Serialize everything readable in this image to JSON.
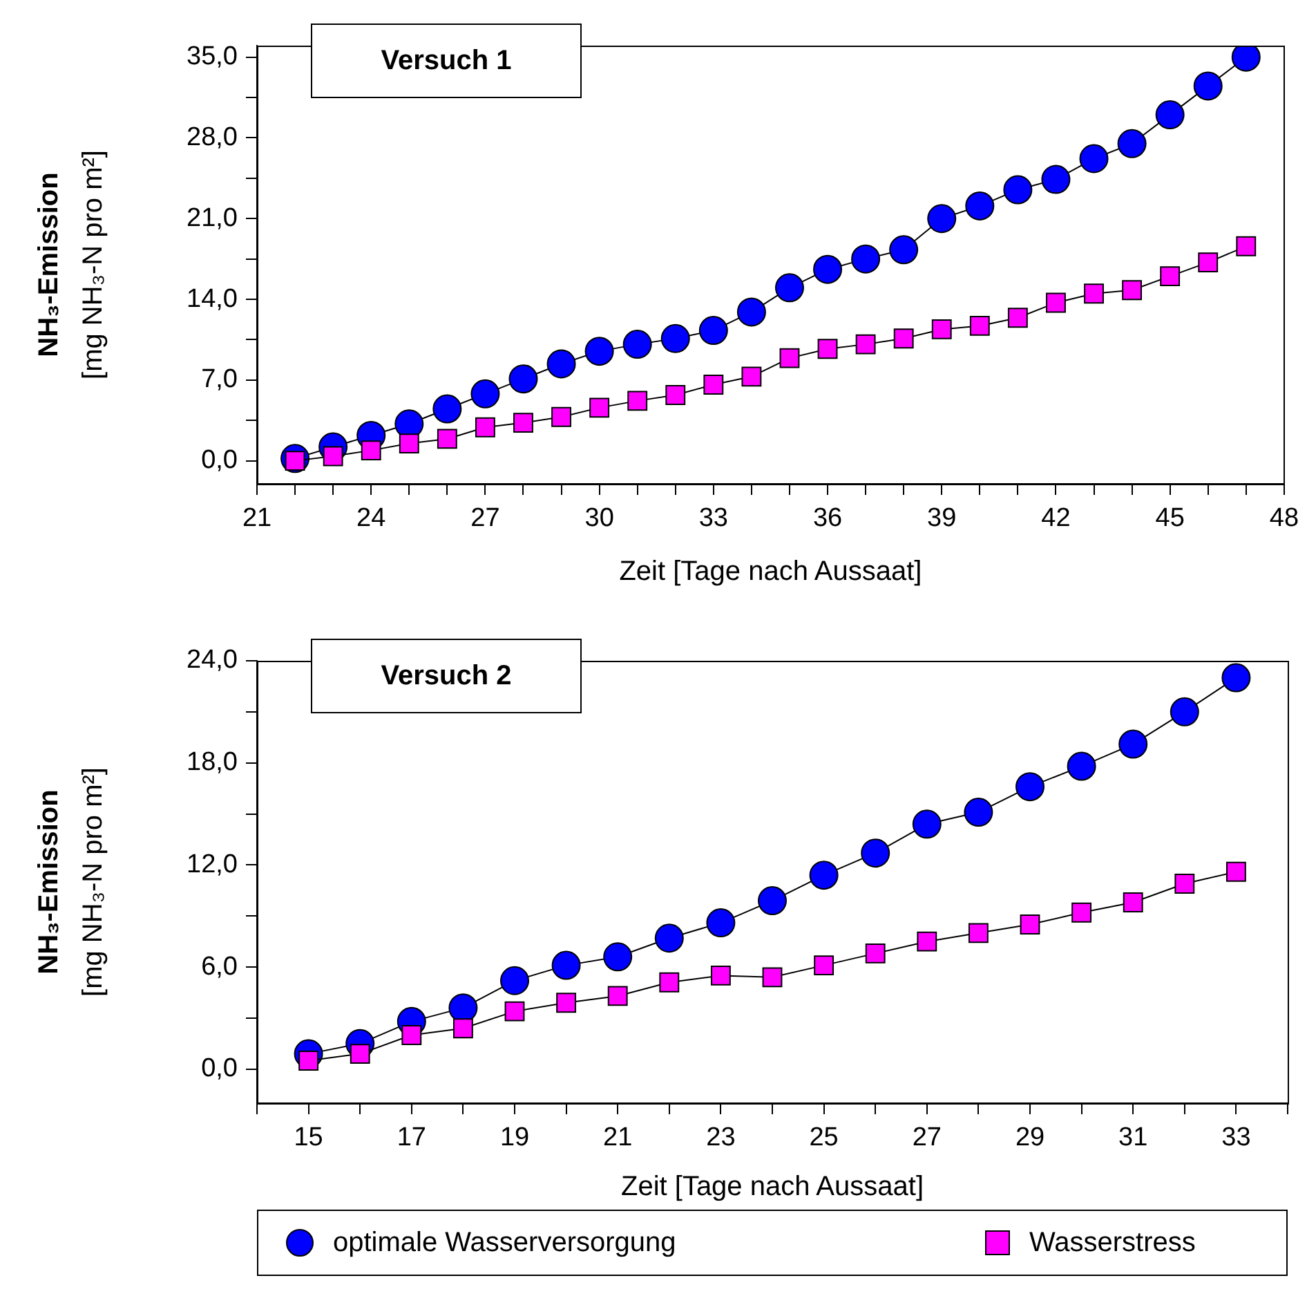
{
  "chart_data": [
    {
      "type": "line",
      "title": "Versuch 1",
      "xlabel": "Zeit [Tage nach Aussaat]",
      "ylabel": "NH₃-Emission\n[mg NH₃-N pro m²]",
      "xlim": [
        21,
        48
      ],
      "xticks": [
        21,
        {
          "value": 22,
          "label": null
        },
        {
          "value": 23,
          "label": null
        },
        24,
        {
          "value": 25,
          "label": null
        },
        {
          "value": 26,
          "label": null
        },
        27,
        {
          "value": 28,
          "label": null
        },
        {
          "value": 29,
          "label": null
        },
        30,
        {
          "value": 31,
          "label": null
        },
        {
          "value": 32,
          "label": null
        },
        33,
        {
          "value": 34,
          "label": null
        },
        {
          "value": 35,
          "label": null
        },
        36,
        {
          "value": 37,
          "label": null
        },
        {
          "value": 38,
          "label": null
        },
        39,
        {
          "value": 40,
          "label": null
        },
        {
          "value": 41,
          "label": null
        },
        42,
        {
          "value": 43,
          "label": null
        },
        {
          "value": 44,
          "label": null
        },
        45,
        {
          "value": 46,
          "label": null
        },
        {
          "value": 47,
          "label": null
        },
        48
      ],
      "ylim": [
        -2,
        36
      ],
      "yticks": [
        {
          "value": 0,
          "label": "0,0"
        },
        {
          "value": 3.5,
          "label": null
        },
        {
          "value": 7,
          "label": "7,0"
        },
        {
          "value": 10.5,
          "label": null
        },
        {
          "value": 14,
          "label": "14,0"
        },
        {
          "value": 17.5,
          "label": null
        },
        {
          "value": 21,
          "label": "21,0"
        },
        {
          "value": 24.5,
          "label": null
        },
        {
          "value": 28,
          "label": "28,0"
        },
        {
          "value": 31.5,
          "label": null
        },
        {
          "value": 35,
          "label": "35,0"
        }
      ],
      "x": [
        22,
        23,
        24,
        25,
        26,
        27,
        28,
        29,
        30,
        31,
        32,
        33,
        34,
        35,
        36,
        37,
        38,
        39,
        40,
        41,
        42,
        43,
        44,
        45,
        46,
        47
      ],
      "series": [
        {
          "color": "#0000ff",
          "marker": "circle",
          "values": [
            0.2,
            1.2,
            2.2,
            3.2,
            4.5,
            5.8,
            7.1,
            8.4,
            9.5,
            10.1,
            10.6,
            11.3,
            12.9,
            15.0,
            16.6,
            17.5,
            18.3,
            21.0,
            22.1,
            23.5,
            24.4,
            26.2,
            27.5,
            30.0,
            32.5,
            35.0
          ]
        },
        {
          "color": "#ff00ff",
          "marker": "square",
          "values": [
            0,
            0.4,
            0.9,
            1.5,
            1.9,
            2.9,
            3.3,
            3.8,
            4.6,
            5.2,
            5.7,
            6.6,
            7.3,
            8.9,
            9.7,
            10.1,
            10.6,
            11.4,
            11.7,
            12.4,
            13.7,
            14.5,
            14.8,
            16.0,
            17.2,
            18.6
          ]
        }
      ],
      "grid": false,
      "legend": false
    },
    {
      "type": "line",
      "title": "Versuch 2",
      "xlabel": "Zeit [Tage nach Aussaat]",
      "ylabel": "NH₃-Emission\n[mg NH₃-N pro m²]",
      "xlim": [
        14,
        34
      ],
      "xticks": [
        {
          "value": 14,
          "label": null
        },
        15,
        {
          "value": 16,
          "label": null
        },
        17,
        {
          "value": 18,
          "label": null
        },
        19,
        {
          "value": 20,
          "label": null
        },
        21,
        {
          "value": 22,
          "label": null
        },
        23,
        {
          "value": 24,
          "label": null
        },
        25,
        {
          "value": 26,
          "label": null
        },
        27,
        {
          "value": 28,
          "label": null
        },
        29,
        {
          "value": 30,
          "label": null
        },
        31,
        {
          "value": 32,
          "label": null
        },
        33,
        {
          "value": 34,
          "label": null
        }
      ],
      "ylim": [
        -2,
        24
      ],
      "yticks": [
        {
          "value": 0,
          "label": "0,0"
        },
        {
          "value": 3,
          "label": null
        },
        {
          "value": 6,
          "label": "6,0"
        },
        {
          "value": 9,
          "label": null
        },
        {
          "value": 12,
          "label": "12,0"
        },
        {
          "value": 15,
          "label": null
        },
        {
          "value": 18,
          "label": "18,0"
        },
        {
          "value": 21,
          "label": null
        },
        {
          "value": 24,
          "label": "24,0"
        }
      ],
      "x": [
        15,
        16,
        17,
        18,
        19,
        20,
        21,
        22,
        23,
        24,
        25,
        26,
        27,
        28,
        29,
        30,
        31,
        32,
        33
      ],
      "series": [
        {
          "name": "optimale Wasserversorgung",
          "color": "#0000ff",
          "marker": "circle",
          "values": [
            0.9,
            1.5,
            2.8,
            3.6,
            5.2,
            6.1,
            6.6,
            7.7,
            8.6,
            9.9,
            11.4,
            12.7,
            14.4,
            15.1,
            16.6,
            17.8,
            19.1,
            21.0,
            23.0
          ]
        },
        {
          "name": "Wasserstress",
          "color": "#ff00ff",
          "marker": "square",
          "values": [
            0.5,
            0.9,
            2.0,
            2.4,
            3.4,
            3.9,
            4.3,
            5.1,
            5.5,
            5.4,
            6.1,
            6.8,
            7.5,
            8.0,
            8.5,
            9.2,
            9.8,
            10.9,
            11.6
          ]
        }
      ],
      "grid": false,
      "legend": "bottom"
    }
  ]
}
